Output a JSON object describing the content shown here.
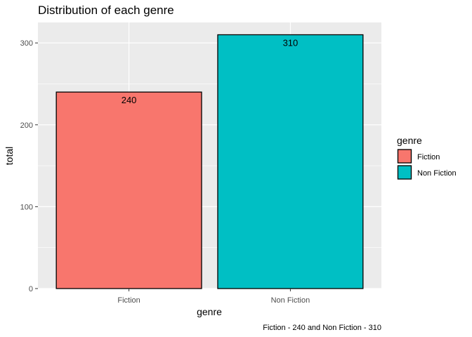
{
  "chart_data": {
    "type": "bar",
    "title": "Distribution of each genre",
    "xlabel": "genre",
    "ylabel": "total",
    "categories": [
      "Fiction",
      "Non Fiction"
    ],
    "values": [
      240,
      310
    ],
    "data_labels": [
      "240",
      "310"
    ],
    "ylim": [
      0,
      325
    ],
    "yticks": [
      0,
      100,
      200,
      300
    ],
    "ytick_labels": [
      "0",
      "100",
      "200",
      "300"
    ],
    "grid": true,
    "legend": {
      "title": "genre",
      "placement": "right",
      "entries": [
        "Fiction",
        "Non Fiction"
      ]
    },
    "colors": [
      "#F8766D",
      "#00BFC4"
    ],
    "panel_background": "#EBEBEB",
    "caption": "Fiction - 240 and Non Fiction - 310"
  }
}
